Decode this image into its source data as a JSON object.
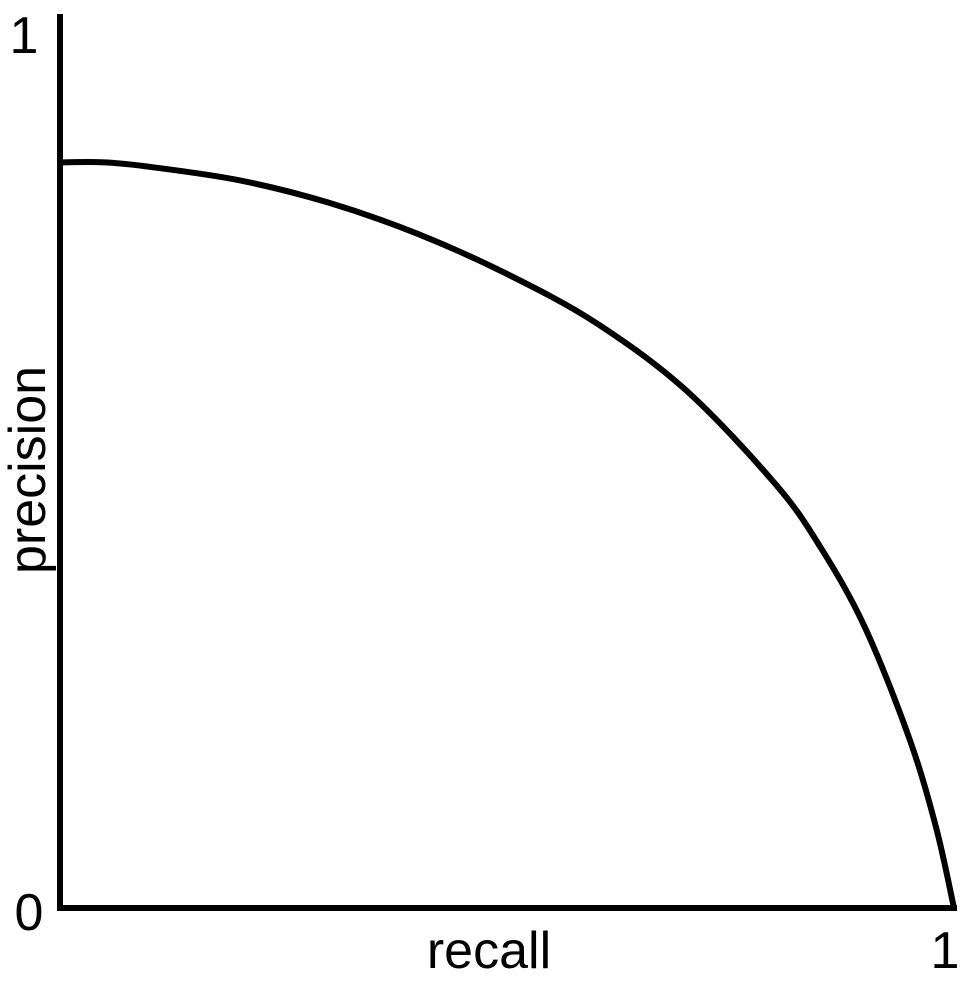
{
  "chart_data": {
    "type": "line",
    "xlabel": "recall",
    "ylabel": "precision",
    "xlim": [
      0,
      1
    ],
    "ylim": [
      0,
      1
    ],
    "grid": false,
    "tick_labels": {
      "y_max": "1",
      "origin": "0",
      "x_max": "1"
    },
    "series": [
      {
        "x": [
          0.0,
          0.05,
          0.1,
          0.2,
          0.3,
          0.4,
          0.5,
          0.6,
          0.7,
          0.8,
          0.85,
          0.9,
          0.95,
          0.98,
          1.0
        ],
        "y": [
          0.835,
          0.835,
          0.83,
          0.815,
          0.79,
          0.755,
          0.71,
          0.655,
          0.58,
          0.475,
          0.405,
          0.315,
          0.19,
          0.09,
          0.0
        ]
      }
    ]
  }
}
